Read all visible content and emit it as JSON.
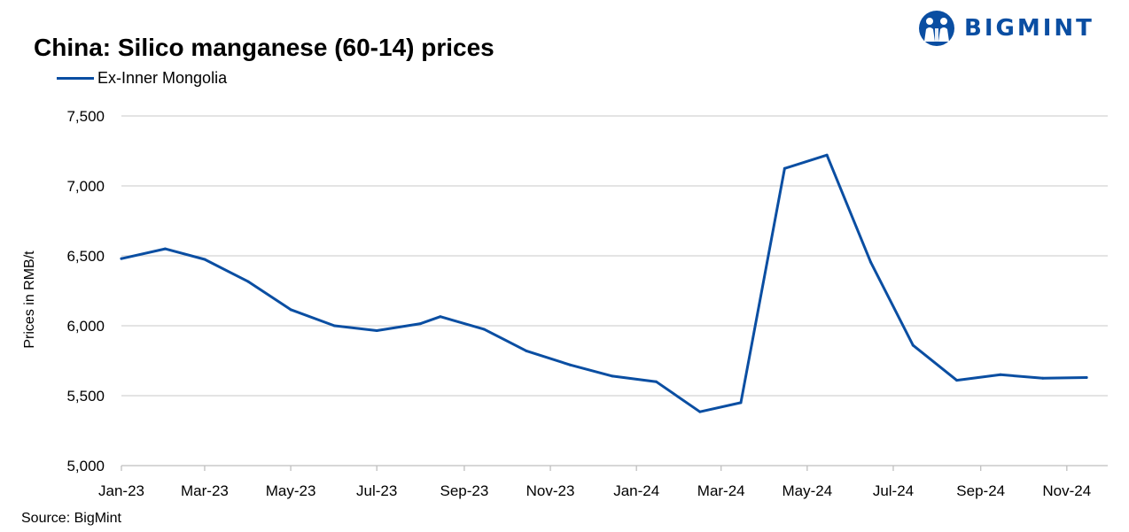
{
  "brand": {
    "name": "BIGMINT",
    "color": "#0A4EA2"
  },
  "source": "Source: BigMint",
  "chart_data": {
    "type": "line",
    "title": "China: Silico manganese (60-14) prices",
    "ylabel": "Prices in RMB/t",
    "xlabel": "",
    "ylim": [
      5000,
      7500
    ],
    "y_ticks": [
      5000,
      5500,
      6000,
      6500,
      7000,
      7500
    ],
    "y_tick_labels": [
      "5,000",
      "5,500",
      "6,000",
      "6,500",
      "7,000",
      "7,500"
    ],
    "x_range": [
      "2023-01-01",
      "2024-11-30"
    ],
    "x_ticks": [
      "2023-01-01",
      "2023-03-01",
      "2023-05-01",
      "2023-07-01",
      "2023-09-01",
      "2023-11-01",
      "2024-01-01",
      "2024-03-01",
      "2024-05-01",
      "2024-07-01",
      "2024-09-01",
      "2024-11-01"
    ],
    "x_tick_labels": [
      "Jan-23",
      "Mar-23",
      "May-23",
      "Jul-23",
      "Sep-23",
      "Nov-23",
      "Jan-24",
      "Mar-24",
      "May-24",
      "Jul-24",
      "Sep-24",
      "Nov-24"
    ],
    "grid": true,
    "legend_position": "top-left",
    "series": [
      {
        "name": "Ex-Inner Mongolia",
        "color": "#0A4EA2",
        "points": [
          {
            "x": "2023-01-01",
            "y": 6480
          },
          {
            "x": "2023-02-01",
            "y": 6550
          },
          {
            "x": "2023-03-01",
            "y": 6475
          },
          {
            "x": "2023-04-01",
            "y": 6315
          },
          {
            "x": "2023-05-01",
            "y": 6115
          },
          {
            "x": "2023-06-01",
            "y": 6000
          },
          {
            "x": "2023-07-01",
            "y": 5965
          },
          {
            "x": "2023-08-01",
            "y": 6015
          },
          {
            "x": "2023-08-15",
            "y": 6065
          },
          {
            "x": "2023-09-15",
            "y": 5975
          },
          {
            "x": "2023-10-15",
            "y": 5820
          },
          {
            "x": "2023-11-15",
            "y": 5720
          },
          {
            "x": "2023-12-15",
            "y": 5640
          },
          {
            "x": "2024-01-15",
            "y": 5600
          },
          {
            "x": "2024-02-15",
            "y": 5385
          },
          {
            "x": "2024-03-15",
            "y": 5450
          },
          {
            "x": "2024-04-15",
            "y": 7125
          },
          {
            "x": "2024-05-15",
            "y": 7220
          },
          {
            "x": "2024-06-15",
            "y": 6455
          },
          {
            "x": "2024-07-15",
            "y": 5860
          },
          {
            "x": "2024-08-15",
            "y": 5610
          },
          {
            "x": "2024-09-15",
            "y": 5650
          },
          {
            "x": "2024-10-15",
            "y": 5625
          },
          {
            "x": "2024-11-15",
            "y": 5630
          }
        ]
      }
    ]
  }
}
